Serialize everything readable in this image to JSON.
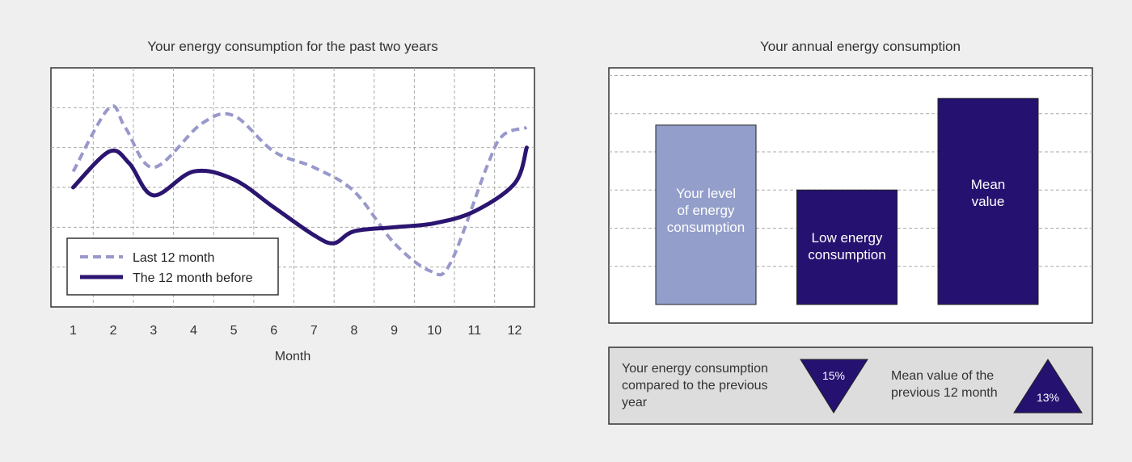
{
  "chart_data": [
    {
      "type": "line",
      "title": "Your energy consumption for the past two years",
      "xlabel": "Month",
      "ylabel": "",
      "x": [
        1,
        2,
        3,
        4,
        5,
        6,
        7,
        8,
        9,
        10,
        11,
        12
      ],
      "x_ticks": [
        "1",
        "2",
        "3",
        "4",
        "5",
        "6",
        "7",
        "8",
        "9",
        "10",
        "11",
        "12"
      ],
      "ylim": [
        0,
        6
      ],
      "grid": true,
      "legend_position": "bottom-left",
      "series": [
        {
          "name": "Last 12 month",
          "style": "dashed",
          "color": "#9898cc",
          "x": [
            1,
            1.9,
            2.3,
            3,
            4.2,
            5,
            6,
            7,
            8,
            9,
            9.9,
            10.4,
            11.3,
            11.7,
            12.3
          ],
          "values": [
            3.4,
            5,
            4.5,
            3.5,
            4.6,
            4.8,
            3.9,
            3.5,
            2.9,
            1.6,
            0.9,
            1.1,
            3.5,
            4.3,
            4.5
          ]
        },
        {
          "name": "The 12 month before",
          "style": "solid",
          "color": "#2b1570",
          "x": [
            1,
            1.9,
            2.4,
            3,
            4,
            5,
            6,
            7,
            7.5,
            8,
            9,
            10,
            11,
            12,
            12.3
          ],
          "values": [
            3,
            3.9,
            3.6,
            2.8,
            3.4,
            3.2,
            2.5,
            1.8,
            1.6,
            1.9,
            2.0,
            2.1,
            2.4,
            3.1,
            4
          ]
        }
      ]
    },
    {
      "type": "bar",
      "title": "Your annual energy consumption",
      "categories": [
        "Your level of energy consumption",
        "Low energy consumption",
        "Mean value"
      ],
      "labels": [
        [
          "Your level",
          "of energy",
          "consumption"
        ],
        [
          "Low energy",
          "consumption"
        ],
        [
          "Mean",
          "value"
        ]
      ],
      "values": [
        4.7,
        3,
        5.4
      ],
      "colors": [
        "#939fca",
        "#251270",
        "#251270"
      ],
      "ylim": [
        0,
        6.2
      ],
      "grid": true
    }
  ],
  "summary": {
    "left_lines": [
      "Your energy consumption",
      "compared to the previous",
      "year"
    ],
    "left_value": "15%",
    "left_direction": "down",
    "right_lines": [
      "Mean value of the",
      "previous 12 month"
    ],
    "right_value": "13%",
    "right_direction": "up",
    "triangle_color": "#251270"
  }
}
